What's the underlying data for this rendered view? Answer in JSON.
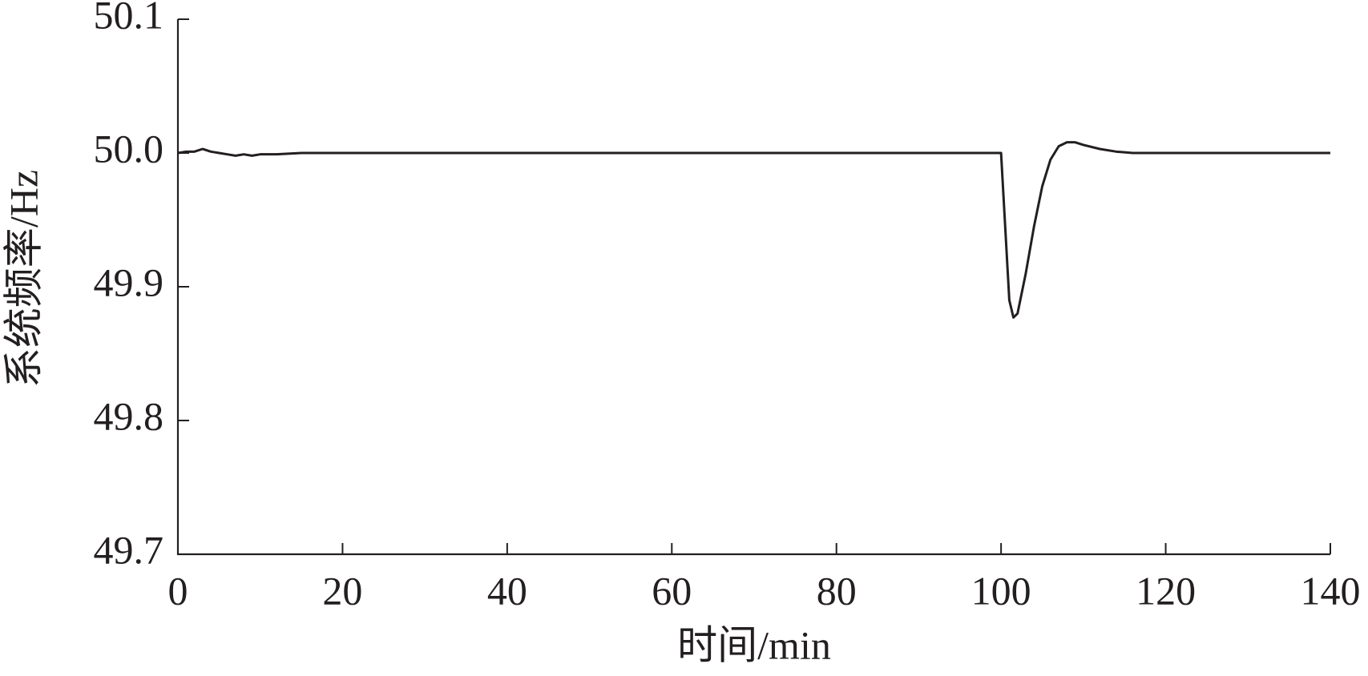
{
  "chart_data": {
    "type": "line",
    "x_label": "时间/min",
    "y_label": "系统频率/Hz",
    "x": [
      0,
      1,
      2,
      3,
      4,
      5,
      6,
      7,
      8,
      9,
      10,
      12,
      15,
      20,
      40,
      60,
      80,
      100,
      101,
      101.5,
      102,
      103,
      104,
      105,
      106,
      107,
      108,
      109,
      110,
      112,
      114,
      116,
      120,
      140
    ],
    "series": [
      {
        "color": "#231f20",
        "values": [
          50.0,
          50.001,
          50.001,
          50.003,
          50.001,
          50.0,
          49.999,
          49.998,
          49.999,
          49.998,
          49.999,
          49.999,
          50.0,
          50.0,
          50.0,
          50.0,
          50.0,
          50.0,
          49.89,
          49.877,
          49.88,
          49.91,
          49.945,
          49.975,
          49.995,
          50.005,
          50.008,
          50.008,
          50.006,
          50.003,
          50.001,
          50.0,
          50.0,
          50.0
        ]
      }
    ],
    "xlim": [
      0,
      140
    ],
    "xticks": [
      0,
      20,
      40,
      60,
      80,
      100,
      120,
      140
    ],
    "ylim": [
      49.7,
      50.1
    ],
    "yticks": [
      49.7,
      49.8,
      49.9,
      {
        "value": 50,
        "label": "50.0"
      },
      50.1
    ]
  }
}
